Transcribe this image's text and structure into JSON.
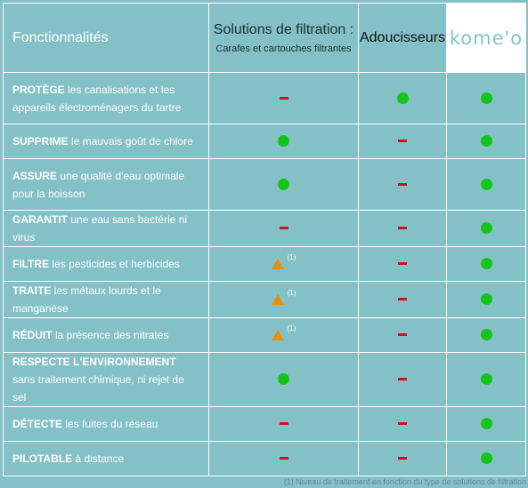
{
  "header": {
    "features": "Fonctionnalités",
    "filtration_line1": "Solutions de filtration :",
    "filtration_line2": "Carafes et cartouches filtrantes",
    "softeners": "Adoucisseurs",
    "kom_logo": "kome'o"
  },
  "rows": [
    {
      "bold": "PROTÈGE",
      "rest": " les canalisations et les appareils électroménagers du tartre",
      "filt": "no",
      "adou": "yes",
      "kom": "yes"
    },
    {
      "bold": "SUPPRIME",
      "rest": " le mauvais goût de chlore",
      "filt": "yes",
      "adou": "no",
      "kom": "yes"
    },
    {
      "bold": "ASSURE",
      "rest": " une qualité d'eau optimale pour la boisson",
      "filt": "yes",
      "adou": "no",
      "kom": "yes"
    },
    {
      "bold": "GARANTIT",
      "rest": " une eau sans bactérie ni virus",
      "filt": "no",
      "adou": "no",
      "kom": "yes"
    },
    {
      "bold": "FILTRE",
      "rest": " les pesticides et herbicides",
      "filt": "partial",
      "filt_note": "(1)",
      "adou": "no",
      "kom": "yes"
    },
    {
      "bold": "TRAITE",
      "rest": " les métaux lourds et le manganèse",
      "filt": "partial",
      "filt_note": "(1)",
      "adou": "no",
      "kom": "yes"
    },
    {
      "bold": "RÉDUIT",
      "rest": " la présence des nitrates",
      "filt": "partial",
      "filt_note": "(1)",
      "adou": "no",
      "kom": "yes"
    },
    {
      "bold": "RESPECTE L'ENVIRONNEMENT",
      "rest": "sans traitement chimique, ni rejet de sel",
      "filt": "yes",
      "adou": "no",
      "kom": "yes"
    },
    {
      "bold": "DÉTECTE",
      "rest": " les fuites du réseau",
      "filt": "no",
      "adou": "no",
      "kom": "yes"
    },
    {
      "bold": "PILOTABLE",
      "rest": " à distance",
      "filt": "no",
      "adou": "no",
      "kom": "yes"
    }
  ],
  "footnote": "(1) Niveau de traitement en fonction du type de solutions de filtration",
  "colors": {
    "background": "#84c1c7",
    "yes": "#14c41a",
    "no": "#c2171b",
    "partial": "#e88d13"
  }
}
